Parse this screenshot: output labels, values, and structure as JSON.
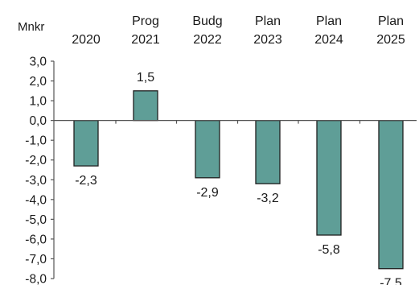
{
  "chart_data": {
    "type": "bar",
    "unit_label": "Mnkr",
    "categories": [
      {
        "line1": "",
        "line2": "2020"
      },
      {
        "line1": "Prog",
        "line2": "2021"
      },
      {
        "line1": "Budg",
        "line2": "2022"
      },
      {
        "line1": "Plan",
        "line2": "2023"
      },
      {
        "line1": "Plan",
        "line2": "2024"
      },
      {
        "line1": "Plan",
        "line2": "2025"
      }
    ],
    "values": [
      -2.3,
      1.5,
      -2.9,
      -3.2,
      -5.8,
      -7.5
    ],
    "value_labels": [
      "-2,3",
      "1,5",
      "-2,9",
      "-3,2",
      "-5,8",
      "-7,5"
    ],
    "ylim": [
      -8.0,
      3.0
    ],
    "yticks": [
      3.0,
      2.0,
      1.0,
      0.0,
      -1.0,
      -2.0,
      -3.0,
      -4.0,
      -5.0,
      -6.0,
      -7.0,
      -8.0
    ],
    "ytick_labels": [
      "3,0",
      "2,0",
      "1,0",
      "0,0",
      "-1,0",
      "-2,0",
      "-3,0",
      "-4,0",
      "-5,0",
      "-6,0",
      "-7,0",
      "-8,0"
    ],
    "bar_color": "#5f9e97",
    "bar_edge_color": "#1f1f1f",
    "axis_color": "#555555",
    "grid": false,
    "legend": "none"
  }
}
